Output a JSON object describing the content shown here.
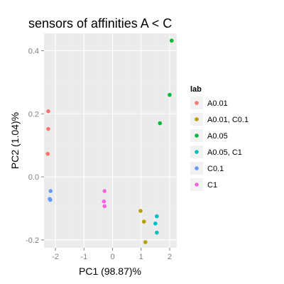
{
  "chart_data": {
    "type": "scatter",
    "title": "sensors of affinities A < C",
    "xlabel": "PC1 (98.87)%",
    "ylabel": "PC2 (1.04)%",
    "xlim": [
      -2.4,
      2.25
    ],
    "ylim": [
      -0.225,
      0.455
    ],
    "xticks": [
      -2,
      -1,
      0,
      1,
      2
    ],
    "yticks": [
      -0.2,
      0.0,
      0.2,
      0.4
    ],
    "xtick_labels": [
      "-2",
      "-1",
      "0",
      "1",
      "2"
    ],
    "ytick_labels": [
      "-0.2",
      "0.0",
      "0.2",
      "0.4"
    ],
    "grid": true,
    "panel_background": "#ebebeb",
    "grid_color": "#ffffff",
    "legend": {
      "title": "lab",
      "placement": "right"
    },
    "series": [
      {
        "name": "A0.01",
        "color": "#f8766d",
        "points": [
          [
            -2.25,
            0.208
          ],
          [
            -2.25,
            0.152
          ],
          [
            -2.27,
            0.073
          ]
        ]
      },
      {
        "name": "A0.01, C0.1",
        "color": "#b79f00",
        "points": [
          [
            0.98,
            -0.108
          ],
          [
            1.1,
            -0.142
          ],
          [
            1.15,
            -0.207
          ]
        ]
      },
      {
        "name": "A0.05",
        "color": "#00ba38",
        "points": [
          [
            2.07,
            0.432
          ],
          [
            2.0,
            0.26
          ],
          [
            1.66,
            0.17
          ]
        ]
      },
      {
        "name": "A0.05, C1",
        "color": "#00bfc4",
        "points": [
          [
            1.55,
            -0.125
          ],
          [
            1.5,
            -0.148
          ],
          [
            1.55,
            -0.177
          ]
        ]
      },
      {
        "name": "C0.1",
        "color": "#619cff",
        "points": [
          [
            -2.17,
            -0.045
          ],
          [
            -2.2,
            -0.07
          ],
          [
            -2.18,
            -0.073
          ]
        ]
      },
      {
        "name": "C1",
        "color": "#f564e3",
        "points": [
          [
            -0.28,
            -0.045
          ],
          [
            -0.3,
            -0.078
          ],
          [
            -0.28,
            -0.093
          ]
        ]
      }
    ]
  }
}
